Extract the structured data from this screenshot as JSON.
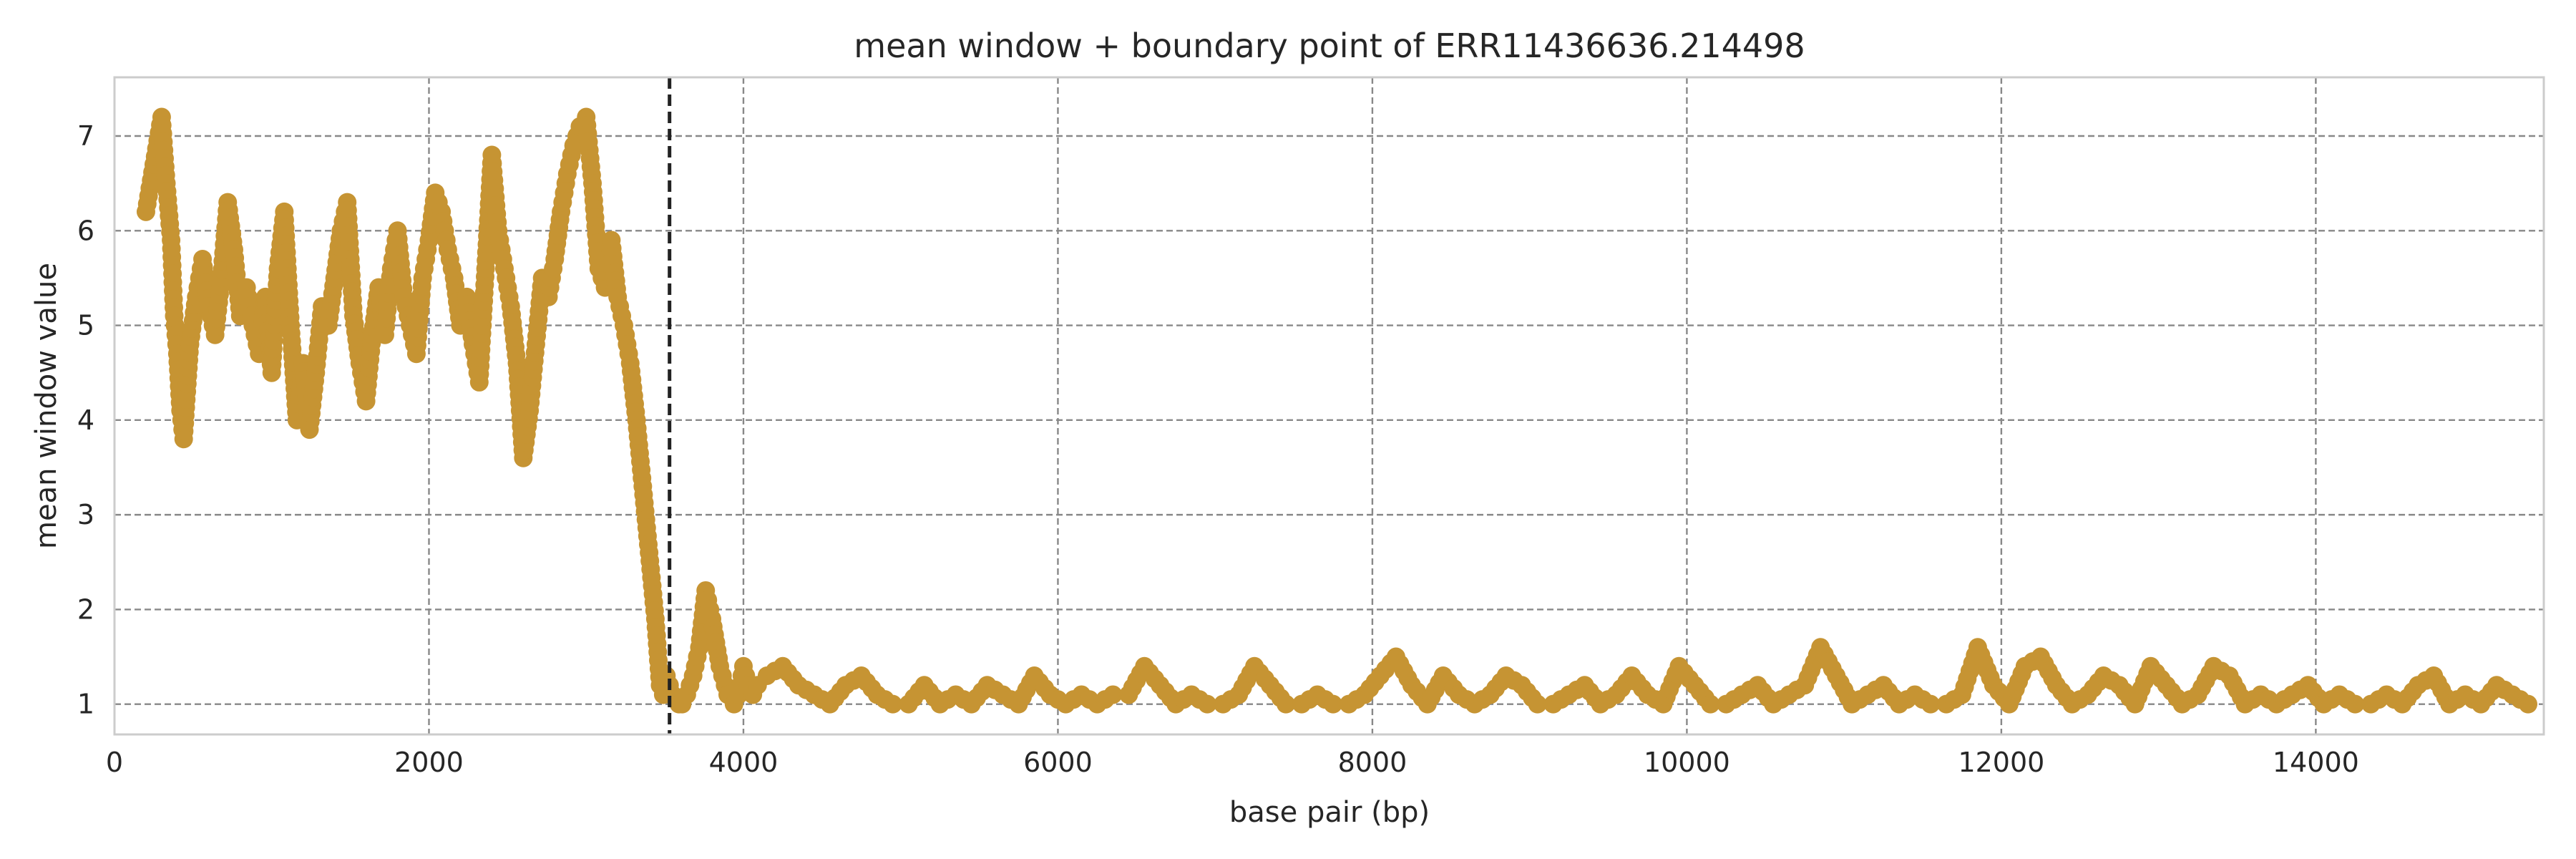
{
  "chart_data": {
    "type": "line",
    "title": "mean window + boundary point of ERR11436636.214498",
    "xlabel": "base pair (bp)",
    "ylabel": "mean window value",
    "xlim": [
      0,
      15450
    ],
    "ylim": [
      0.68,
      7.62
    ],
    "xticks": [
      0,
      2000,
      4000,
      6000,
      8000,
      10000,
      12000,
      14000
    ],
    "yticks": [
      1,
      2,
      3,
      4,
      5,
      6,
      7
    ],
    "grid": true,
    "legend": "none",
    "colors": {
      "series": "#c69433",
      "boundary": "#222222",
      "grid": "#888888",
      "frame": "#cccccc"
    },
    "boundary_x": 3530,
    "series": [
      {
        "x": [
          200,
          250,
          300,
          330,
          360,
          380,
          400,
          420,
          440,
          460,
          480,
          520,
          560,
          600,
          640,
          680,
          720,
          760,
          800,
          840,
          880,
          920,
          960,
          1000,
          1040,
          1080,
          1120,
          1160,
          1200,
          1240,
          1280,
          1320,
          1360,
          1400,
          1440,
          1480,
          1520,
          1560,
          1600,
          1640,
          1680,
          1720,
          1760,
          1800,
          1840,
          1880,
          1920,
          1960,
          2000,
          2040,
          2080,
          2120,
          2160,
          2200,
          2240,
          2280,
          2320,
          2360,
          2400,
          2440,
          2480,
          2520,
          2560,
          2600,
          2640,
          2680,
          2720,
          2760,
          2800,
          2840,
          2880,
          2920,
          2960,
          3000,
          3040,
          3080,
          3120,
          3160,
          3200,
          3240,
          3280,
          3320,
          3360,
          3400,
          3440,
          3470,
          3490,
          3510,
          3530,
          3550,
          3570,
          3590,
          3610,
          3640,
          3680,
          3720,
          3760,
          3800,
          3850,
          3900,
          3940,
          3970,
          4000,
          4030,
          4060,
          4090,
          4150,
          4250,
          4350,
          4450,
          4550,
          4650,
          4750,
          4850,
          4950,
          5050,
          5150,
          5250,
          5350,
          5450,
          5550,
          5650,
          5750,
          5850,
          5950,
          6050,
          6150,
          6250,
          6350,
          6450,
          6550,
          6650,
          6750,
          6850,
          6950,
          7050,
          7150,
          7250,
          7350,
          7450,
          7550,
          7650,
          7750,
          7850,
          7950,
          8050,
          8150,
          8250,
          8350,
          8450,
          8550,
          8650,
          8750,
          8850,
          8950,
          9050,
          9150,
          9250,
          9350,
          9450,
          9550,
          9650,
          9750,
          9850,
          9950,
          10050,
          10150,
          10250,
          10350,
          10450,
          10550,
          10650,
          10750,
          10850,
          10950,
          11050,
          11150,
          11250,
          11350,
          11450,
          11550,
          11650,
          11750,
          11850,
          11950,
          12050,
          12150,
          12250,
          12350,
          12450,
          12550,
          12650,
          12750,
          12850,
          12950,
          13050,
          13150,
          13250,
          13350,
          13450,
          13550,
          13650,
          13750,
          13850,
          13950,
          14050,
          14150,
          14250,
          14350,
          14450,
          14550,
          14650,
          14750,
          14850,
          14950,
          15050,
          15150,
          15250,
          15350
        ],
        "values": [
          6.2,
          6.7,
          7.2,
          6.5,
          5.9,
          5.1,
          4.7,
          4.1,
          3.8,
          4.3,
          4.8,
          5.3,
          5.7,
          5.2,
          4.9,
          5.5,
          6.3,
          5.8,
          5.1,
          5.4,
          5.0,
          4.7,
          5.3,
          4.5,
          5.6,
          6.2,
          5.0,
          4.0,
          4.6,
          3.9,
          4.5,
          5.2,
          5.0,
          5.5,
          6.0,
          6.3,
          5.1,
          4.6,
          4.2,
          4.9,
          5.4,
          4.9,
          5.6,
          6.0,
          5.3,
          5.0,
          4.7,
          5.5,
          5.9,
          6.4,
          6.2,
          5.8,
          5.5,
          5.0,
          5.3,
          4.8,
          4.4,
          5.6,
          6.8,
          6.0,
          5.6,
          5.2,
          4.6,
          3.6,
          4.1,
          4.8,
          5.5,
          5.3,
          5.7,
          6.2,
          6.6,
          6.9,
          7.1,
          7.2,
          6.5,
          5.6,
          5.4,
          5.9,
          5.3,
          5.0,
          4.6,
          4.0,
          3.3,
          2.6,
          1.9,
          1.2,
          1.1,
          1.3,
          1.2,
          1.1,
          1.05,
          1.0,
          1.0,
          1.1,
          1.3,
          1.6,
          2.2,
          1.9,
          1.4,
          1.1,
          1.0,
          1.1,
          1.4,
          1.2,
          1.1,
          1.2,
          1.3,
          1.4,
          1.2,
          1.1,
          1.0,
          1.2,
          1.3,
          1.1,
          1.0,
          1.0,
          1.2,
          1.0,
          1.1,
          1.0,
          1.2,
          1.1,
          1.0,
          1.3,
          1.1,
          1.0,
          1.1,
          1.0,
          1.1,
          1.1,
          1.4,
          1.2,
          1.0,
          1.1,
          1.0,
          1.0,
          1.1,
          1.4,
          1.2,
          1.0,
          1.0,
          1.1,
          1.0,
          1.0,
          1.1,
          1.3,
          1.5,
          1.2,
          1.0,
          1.3,
          1.1,
          1.0,
          1.1,
          1.3,
          1.2,
          1.0,
          1.0,
          1.1,
          1.2,
          1.0,
          1.1,
          1.3,
          1.1,
          1.0,
          1.4,
          1.2,
          1.0,
          1.0,
          1.1,
          1.2,
          1.0,
          1.1,
          1.2,
          1.6,
          1.3,
          1.0,
          1.1,
          1.2,
          1.0,
          1.1,
          1.0,
          1.0,
          1.1,
          1.6,
          1.2,
          1.0,
          1.4,
          1.5,
          1.2,
          1.0,
          1.1,
          1.3,
          1.2,
          1.0,
          1.4,
          1.2,
          1.0,
          1.1,
          1.4,
          1.3,
          1.0,
          1.1,
          1.0,
          1.1,
          1.2,
          1.0,
          1.1,
          1.0,
          1.0,
          1.1,
          1.0,
          1.2,
          1.3,
          1.0,
          1.1,
          1.0,
          1.2,
          1.1,
          1.0
        ]
      }
    ]
  }
}
